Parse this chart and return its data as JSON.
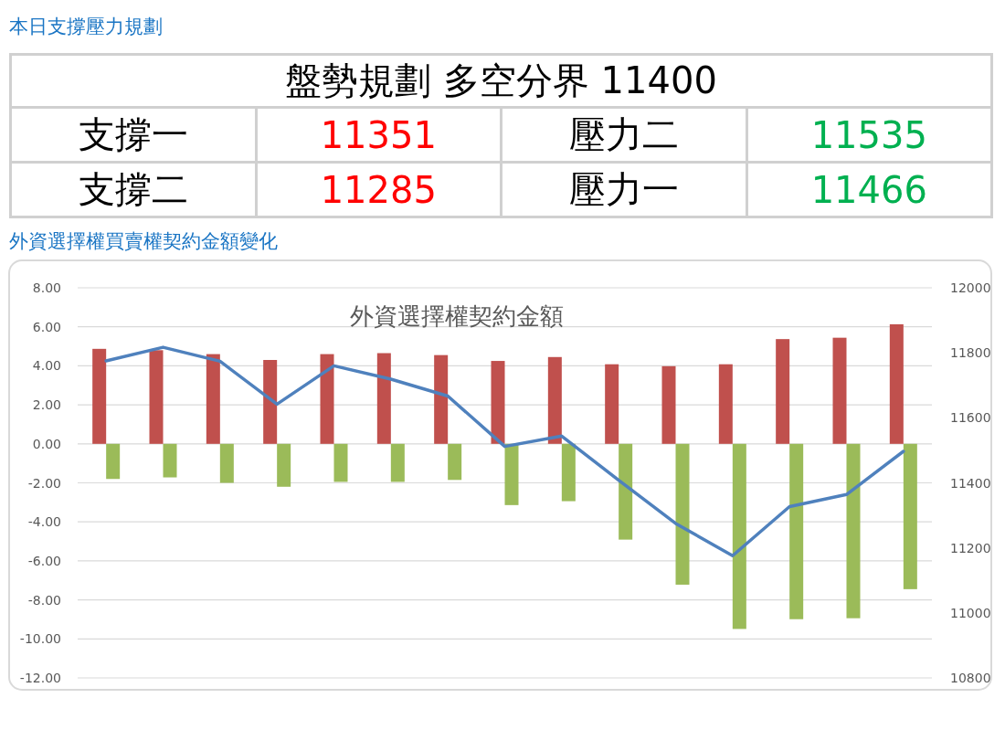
{
  "chart_data": [
    {
      "type": "other",
      "title": "本日支撐壓力規劃",
      "annotations": [
        "盤勢規劃 多空分界 11400",
        "支撐一",
        "11351",
        "壓力二",
        "11535",
        "支撐二",
        "11285",
        "壓力一",
        "11466"
      ],
      "colors": [
        "#000000",
        "#000000",
        "#ff0000",
        "#000000",
        "#00b050",
        "#000000",
        "#ff0000",
        "#000000",
        "#00b050"
      ]
    },
    {
      "type": "bar",
      "title": "外資選擇權買賣權契約金額變化",
      "subtitle": "外資選擇權契約金額",
      "categories": [
        null,
        null,
        null,
        null,
        null,
        null,
        null,
        null,
        null,
        null,
        null,
        null,
        null,
        null,
        null
      ],
      "series": [
        {
          "color": "#c0504d",
          "values": [
            4.87,
            4.8,
            4.6,
            4.3,
            4.6,
            4.65,
            4.55,
            4.25,
            4.45,
            4.08,
            3.98,
            4.08,
            5.37,
            5.44,
            6.13
          ]
        },
        {
          "color": "#9bbb59",
          "values": [
            -1.8,
            -1.72,
            -2.0,
            -2.2,
            -1.95,
            -1.95,
            -1.85,
            -3.14,
            -2.94,
            -4.91,
            -7.22,
            -9.49,
            -8.99,
            -8.94,
            -7.45
          ]
        },
        {
          "type": "line",
          "axis": "y2",
          "color": "#4f81bd",
          "values": [
            11775,
            11817,
            11774,
            11642,
            11760,
            11719,
            11667,
            11512,
            11544,
            11408,
            11275,
            11176,
            11327,
            11364,
            11497
          ]
        }
      ],
      "ylim": [
        -12,
        8
      ],
      "yticks": [
        {
          "value": -12,
          "label": "-12.00"
        },
        {
          "value": -10,
          "label": "-10.00"
        },
        {
          "value": -8,
          "label": "-8.00"
        },
        {
          "value": -6,
          "label": "-6.00"
        },
        {
          "value": -4,
          "label": "-4.00"
        },
        {
          "value": -2,
          "label": "-2.00"
        },
        {
          "value": 0,
          "label": "0.00"
        },
        {
          "value": 2,
          "label": "2.00"
        },
        {
          "value": 4,
          "label": "4.00"
        },
        {
          "value": 6,
          "label": "6.00"
        },
        {
          "value": 8,
          "label": "8.00"
        }
      ],
      "y2lim": [
        10800,
        12000
      ],
      "y2ticks": [
        10800,
        11000,
        11200,
        11400,
        11600,
        11800,
        12000
      ],
      "grid": "y"
    }
  ]
}
